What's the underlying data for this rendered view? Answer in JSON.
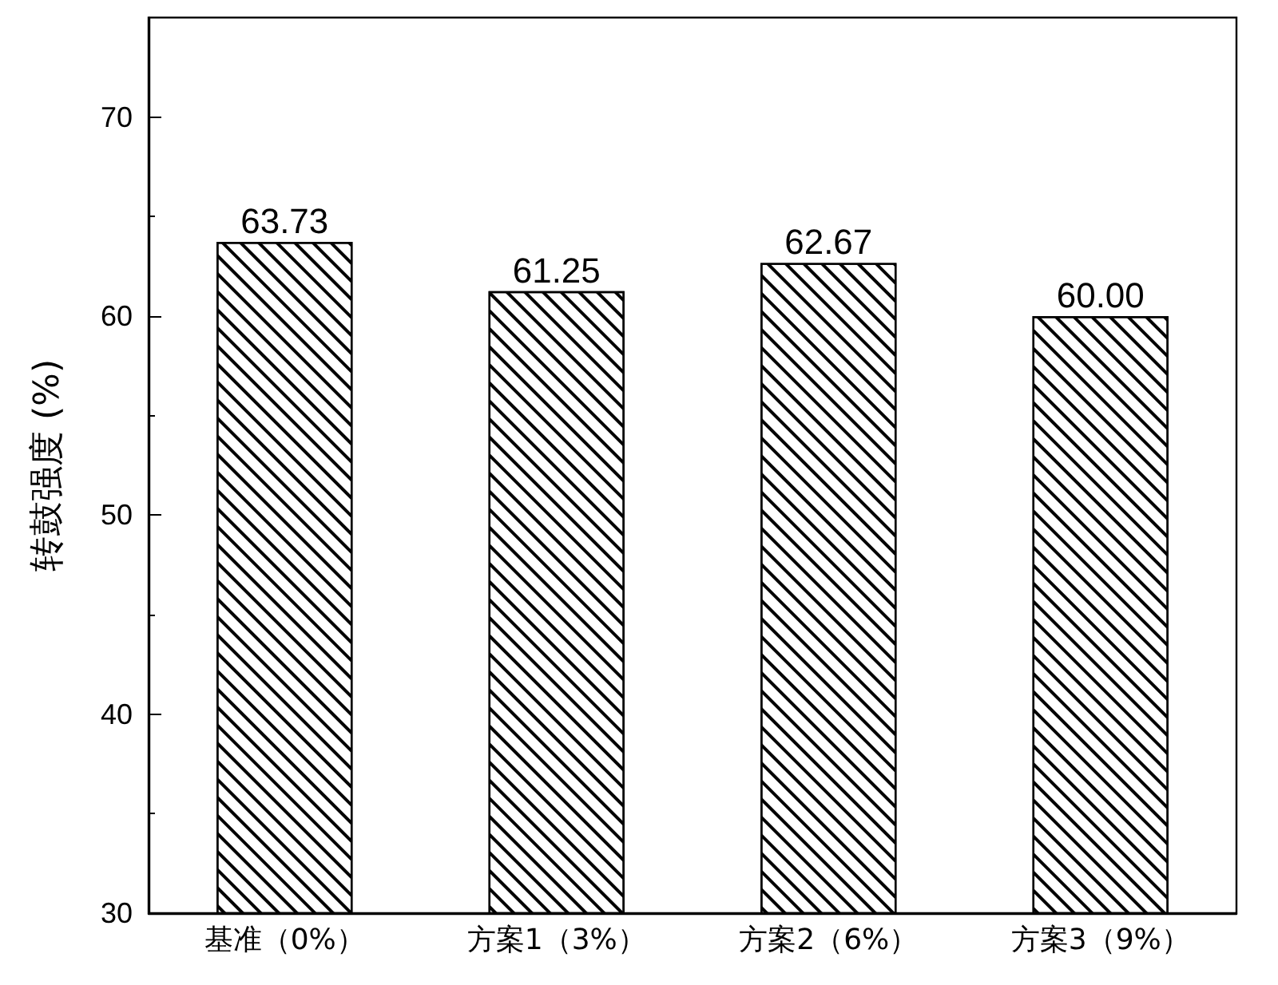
{
  "chart_data": {
    "type": "bar",
    "ylabel": "转鼓强度 (%)",
    "categories": [
      "基准（0%）",
      "方案1（3%）",
      "方案2（6%）",
      "方案3（9%）"
    ],
    "values": [
      63.73,
      61.25,
      62.67,
      60.0
    ],
    "value_labels": [
      "63.73",
      "61.25",
      "62.67",
      "60.00"
    ],
    "color": "#000000",
    "ylim": [
      30,
      75
    ],
    "yticks": [
      30,
      40,
      50,
      60,
      70
    ],
    "grid": false
  }
}
